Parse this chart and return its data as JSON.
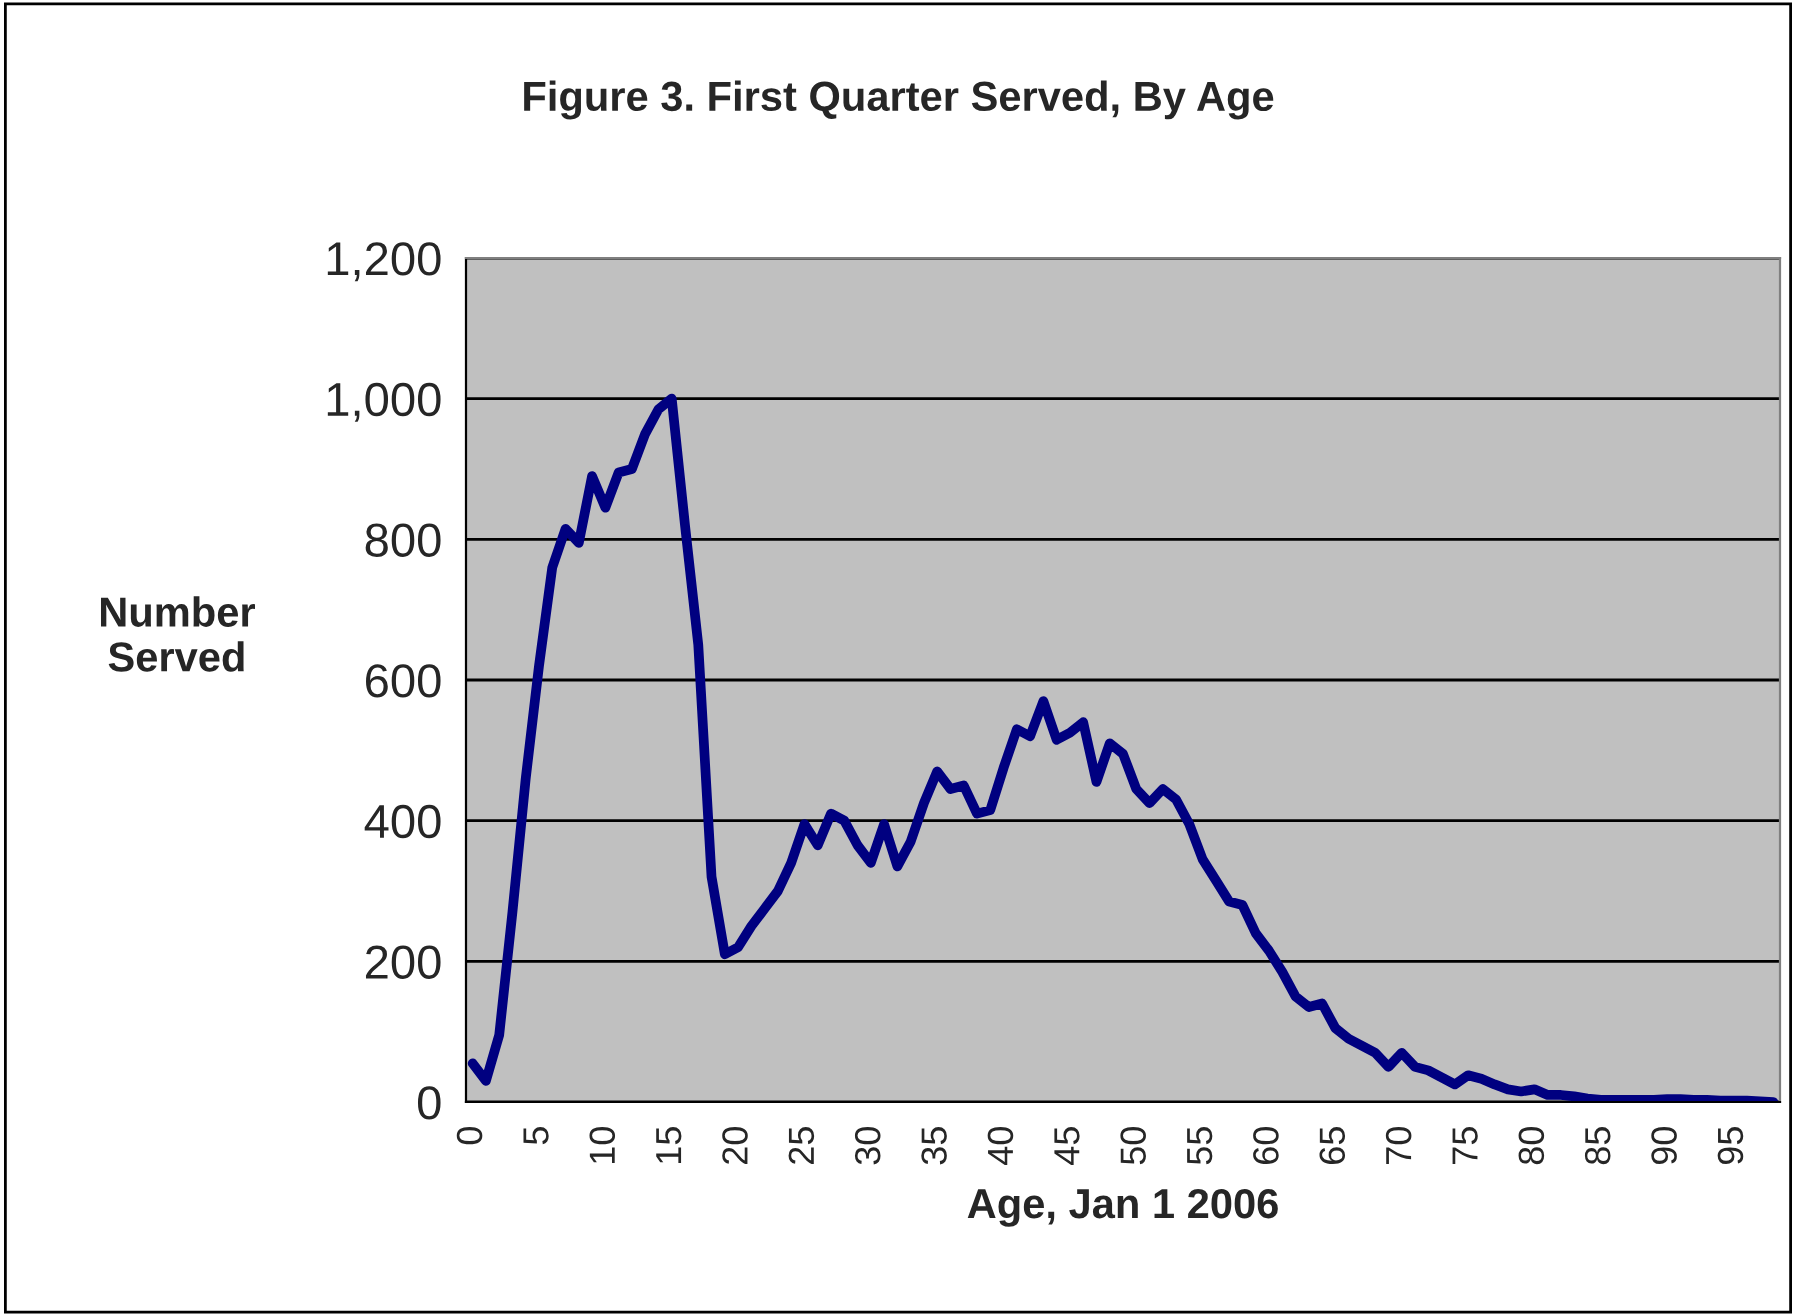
{
  "chart_data": {
    "type": "line",
    "title": "Figure 3. First Quarter Served, By Age",
    "xlabel": "Age, Jan 1 2006",
    "ylabel": "Number\nServed",
    "x": [
      0,
      1,
      2,
      3,
      4,
      5,
      6,
      7,
      8,
      9,
      10,
      11,
      12,
      13,
      14,
      15,
      16,
      17,
      18,
      19,
      20,
      21,
      22,
      23,
      24,
      25,
      26,
      27,
      28,
      29,
      30,
      31,
      32,
      33,
      34,
      35,
      36,
      37,
      38,
      39,
      40,
      41,
      42,
      43,
      44,
      45,
      46,
      47,
      48,
      49,
      50,
      51,
      52,
      53,
      54,
      55,
      56,
      57,
      58,
      59,
      60,
      61,
      62,
      63,
      64,
      65,
      66,
      67,
      68,
      69,
      70,
      71,
      72,
      73,
      74,
      75,
      76,
      77,
      78,
      79,
      80,
      81,
      82,
      83,
      84,
      85,
      86,
      87,
      88,
      89,
      90,
      91,
      92,
      93,
      94,
      95,
      96,
      97,
      98
    ],
    "series": [
      {
        "color": "#000080",
        "values": [
          55,
          30,
          95,
          270,
          460,
          620,
          760,
          815,
          795,
          890,
          845,
          895,
          900,
          950,
          985,
          1000,
          820,
          650,
          320,
          210,
          220,
          250,
          275,
          300,
          340,
          395,
          365,
          410,
          400,
          365,
          340,
          395,
          335,
          370,
          425,
          470,
          445,
          450,
          410,
          415,
          475,
          530,
          520,
          570,
          515,
          525,
          540,
          455,
          510,
          495,
          445,
          425,
          445,
          430,
          395,
          345,
          315,
          285,
          280,
          240,
          215,
          185,
          150,
          135,
          140,
          105,
          90,
          80,
          70,
          50,
          70,
          50,
          45,
          35,
          25,
          38,
          33,
          25,
          18,
          15,
          18,
          10,
          10,
          8,
          5,
          3,
          3,
          3,
          3,
          3,
          4,
          4,
          3,
          3,
          2,
          2,
          2,
          1,
          0
        ]
      }
    ],
    "xlim": [
      -0.5,
      98.5
    ],
    "xticks": [
      0,
      5,
      10,
      15,
      20,
      25,
      30,
      35,
      40,
      45,
      50,
      55,
      60,
      65,
      70,
      75,
      80,
      85,
      90,
      95
    ],
    "ylim": [
      0,
      1200
    ],
    "yticks": [
      {
        "value": 0,
        "label": "0"
      },
      {
        "value": 200,
        "label": "200"
      },
      {
        "value": 400,
        "label": "400"
      },
      {
        "value": 600,
        "label": "600"
      },
      {
        "value": 800,
        "label": "800"
      },
      {
        "value": 1000,
        "label": "1,000"
      },
      {
        "value": 1200,
        "label": "1,200"
      }
    ],
    "grid": "y",
    "marker": "none",
    "line_style": "solid"
  }
}
